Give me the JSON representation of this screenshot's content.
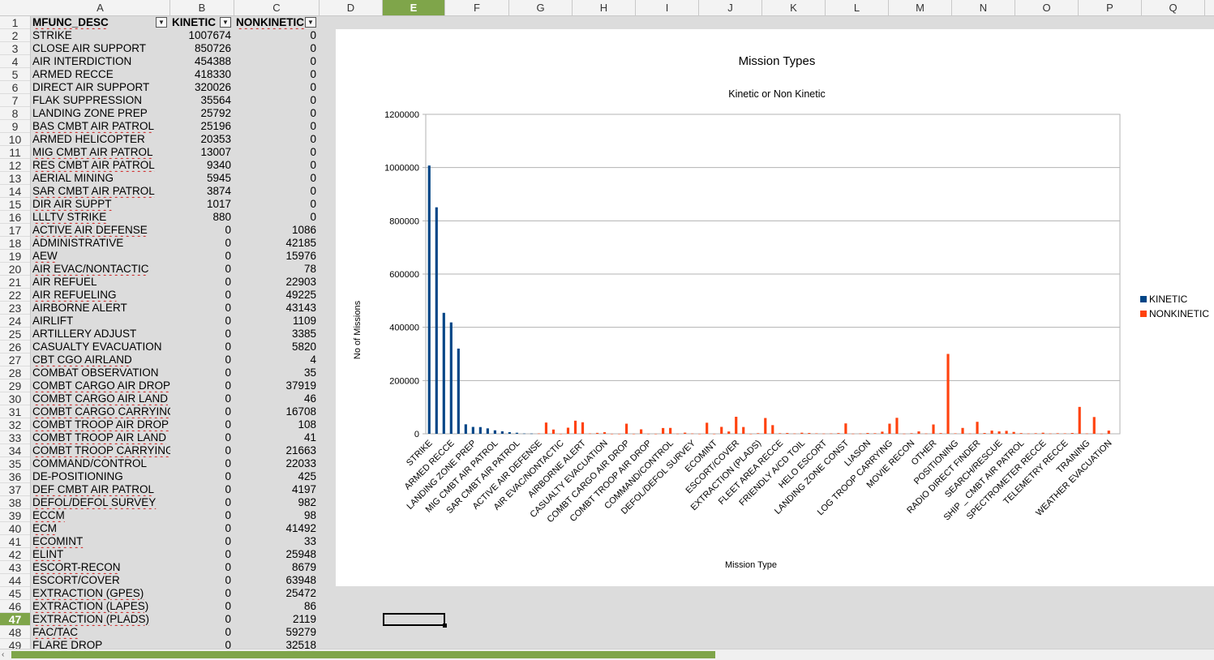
{
  "spreadsheet": {
    "columns": [
      "A",
      "B",
      "C",
      "D",
      "E",
      "F",
      "G",
      "H",
      "I",
      "J",
      "K",
      "L",
      "M",
      "N",
      "O",
      "P",
      "Q"
    ],
    "active_column": "E",
    "active_row": 47,
    "header_row": {
      "a": "MFUNC_DESC",
      "b": "KINETIC",
      "c": "NONKINETIC"
    },
    "rows": [
      {
        "r": 2,
        "a": "STRIKE",
        "b": "1007674",
        "c": "0"
      },
      {
        "r": 3,
        "a": "CLOSE AIR SUPPORT",
        "b": "850726",
        "c": "0"
      },
      {
        "r": 4,
        "a": "AIR INTERDICTION",
        "b": "454388",
        "c": "0"
      },
      {
        "r": 5,
        "a": "ARMED RECCE",
        "b": "418330",
        "c": "0"
      },
      {
        "r": 6,
        "a": "DIRECT AIR SUPPORT",
        "b": "320026",
        "c": "0"
      },
      {
        "r": 7,
        "a": "FLAK SUPPRESSION",
        "b": "35564",
        "c": "0"
      },
      {
        "r": 8,
        "a": "LANDING ZONE PREP",
        "b": "25792",
        "c": "0"
      },
      {
        "r": 9,
        "a": "BAS CMBT AIR  PATROL",
        "b": "25196",
        "c": "0"
      },
      {
        "r": 10,
        "a": "ARMED HELICOPTER",
        "b": "20353",
        "c": "0"
      },
      {
        "r": 11,
        "a": "MIG CMBT AIR PATROL",
        "b": "13007",
        "c": "0"
      },
      {
        "r": 12,
        "a": "RES CMBT AIR PATROL",
        "b": "9340",
        "c": "0"
      },
      {
        "r": 13,
        "a": "AERIAL MINING",
        "b": "5945",
        "c": "0"
      },
      {
        "r": 14,
        "a": "SAR CMBT AIR PATROL",
        "b": "3874",
        "c": "0"
      },
      {
        "r": 15,
        "a": "DIR AIR SUPPT",
        "b": "1017",
        "c": "0"
      },
      {
        "r": 16,
        "a": "LLLTV STRIKE",
        "b": "880",
        "c": "0"
      },
      {
        "r": 17,
        "a": "ACTIVE AIR DEFENSE",
        "b": "0",
        "c": "1086"
      },
      {
        "r": 18,
        "a": "ADMINISTRATIVE",
        "b": "0",
        "c": "42185"
      },
      {
        "r": 19,
        "a": "AEW",
        "b": "0",
        "c": "15976"
      },
      {
        "r": 20,
        "a": "AIR EVAC/NONTACTIC",
        "b": "0",
        "c": "78"
      },
      {
        "r": 21,
        "a": "AIR REFUEL",
        "b": "0",
        "c": "22903"
      },
      {
        "r": 22,
        "a": "AIR REFUELING",
        "b": "0",
        "c": "49225"
      },
      {
        "r": 23,
        "a": "AIRBORNE ALERT",
        "b": "0",
        "c": "43143"
      },
      {
        "r": 24,
        "a": "AIRLIFT",
        "b": "0",
        "c": "1109"
      },
      {
        "r": 25,
        "a": "ARTILLERY ADJUST",
        "b": "0",
        "c": "3385"
      },
      {
        "r": 26,
        "a": "CASUALTY EVACUATION",
        "b": "0",
        "c": "5820"
      },
      {
        "r": 27,
        "a": "CBT CGO AIRLAND",
        "b": "0",
        "c": "4"
      },
      {
        "r": 28,
        "a": "COMBAT OBSERVATION",
        "b": "0",
        "c": "35"
      },
      {
        "r": 29,
        "a": "COMBT CARGO AIR  DROP",
        "b": "0",
        "c": "37919"
      },
      {
        "r": 30,
        "a": "COMBT CARGO AIR LAND",
        "b": "0",
        "c": "46"
      },
      {
        "r": 31,
        "a": "COMBT CARGO CARRYING",
        "b": "0",
        "c": "16708"
      },
      {
        "r": 32,
        "a": "COMBT TROOP AIR DROP",
        "b": "0",
        "c": "108"
      },
      {
        "r": 33,
        "a": "COMBT TROOP AIR LAND",
        "b": "0",
        "c": "41"
      },
      {
        "r": 34,
        "a": "COMBT TROOP CARRYING",
        "b": "0",
        "c": "21663"
      },
      {
        "r": 35,
        "a": "COMMAND/CONTROL",
        "b": "0",
        "c": "22033"
      },
      {
        "r": 36,
        "a": "DE-POSITIONING",
        "b": "0",
        "c": "425"
      },
      {
        "r": 37,
        "a": "DEF CMBT AIR PATROL",
        "b": "0",
        "c": "4197"
      },
      {
        "r": 38,
        "a": "DEFOL/DEFOL SURVEY",
        "b": "0",
        "c": "982"
      },
      {
        "r": 39,
        "a": "ECCM",
        "b": "0",
        "c": "98"
      },
      {
        "r": 40,
        "a": "ECM",
        "b": "0",
        "c": "41492"
      },
      {
        "r": 41,
        "a": "ECOMINT",
        "b": "0",
        "c": "33"
      },
      {
        "r": 42,
        "a": "ELINT",
        "b": "0",
        "c": "25948"
      },
      {
        "r": 43,
        "a": "ESCORT-RECON",
        "b": "0",
        "c": "8679"
      },
      {
        "r": 44,
        "a": "ESCORT/COVER",
        "b": "0",
        "c": "63948"
      },
      {
        "r": 45,
        "a": "EXTRACTION (GPES)",
        "b": "0",
        "c": "25472"
      },
      {
        "r": 46,
        "a": "EXTRACTION (LAPES)",
        "b": "0",
        "c": "86"
      },
      {
        "r": 47,
        "a": "EXTRACTION (PLADS)",
        "b": "0",
        "c": "2119"
      },
      {
        "r": 48,
        "a": "FAC/TAC",
        "b": "0",
        "c": "59279"
      },
      {
        "r": 49,
        "a": "FLARE DROP",
        "b": "0",
        "c": "32518"
      }
    ]
  },
  "chart_data": {
    "type": "bar",
    "title": "Mission Types",
    "subtitle": "Kinetic or Non Kinetic",
    "xlabel": "Mission Type",
    "ylabel": "No of Missions",
    "ylim": [
      0,
      1200000
    ],
    "yticks": [
      "0",
      "200000",
      "400000",
      "600000",
      "800000",
      "1000000",
      "1200000"
    ],
    "grid": true,
    "legend_position": "right",
    "x_tick_labels": [
      "STRIKE",
      "ARMED RECCE",
      "LANDING ZONE PREP",
      "MIG CMBT AIR PATROL",
      "SAR CMBT AIR PATROL",
      "ACTIVE AIR DEFENSE",
      "AIR EVAC/NONTACTIC",
      "AIRBORNE ALERT",
      "CASUALTY EVACUATION",
      "COMBT CARGO AIR  DROP",
      "COMBT TROOP AIR DROP",
      "COMMAND/CONTROL",
      "DEFOL/DEFOL SURVEY",
      "ECOMINT",
      "ESCORT/COVER",
      "EXTRACTION (PLADS)",
      "FLEET AREA RECCE",
      "FRIENDLY A/CD TOIL",
      "HELO ESCORT",
      "LANDING ZONE CONST",
      "LIASON",
      "LOG TROOP CARRYING",
      "MOVIE RECON",
      "OTHER",
      "POSITIONING",
      "RADIO DIRECT FINDER",
      "SEARCH/RESCUE",
      "SHIP _ CMBT AIR PATROL",
      "SPECTROMETER RECCE",
      "TELEMETRY RECCE",
      "TRAINING",
      "WEATHER EVACUATION"
    ],
    "series": [
      {
        "name": "KINETIC",
        "color": "#004586",
        "values": [
          1007674,
          850726,
          454388,
          418330,
          320026,
          35564,
          25792,
          25196,
          20353,
          13007,
          9340,
          5945,
          3874,
          1017,
          880,
          0,
          0,
          0,
          0,
          0,
          0,
          0,
          0,
          0,
          0,
          0,
          0,
          0,
          0,
          0,
          0,
          0,
          0,
          0,
          0,
          0,
          0,
          0,
          0,
          0,
          0,
          0,
          0,
          0,
          0,
          0,
          0,
          0,
          0,
          0,
          0,
          0,
          0,
          0,
          0,
          0,
          0,
          0,
          0,
          0,
          0,
          0,
          0,
          0,
          0,
          0,
          0,
          0,
          0,
          0,
          0,
          0,
          0,
          0,
          0,
          0,
          0,
          0,
          0,
          0,
          0,
          0,
          0,
          0,
          0,
          0,
          0,
          0,
          0,
          0,
          0,
          0,
          0,
          0,
          0
        ]
      },
      {
        "name": "NONKINETIC",
        "color": "#ff420e",
        "values": [
          0,
          0,
          0,
          0,
          0,
          0,
          0,
          0,
          0,
          0,
          0,
          0,
          0,
          0,
          0,
          1086,
          42185,
          15976,
          78,
          22903,
          49225,
          43143,
          1109,
          3385,
          5820,
          4,
          35,
          37919,
          46,
          16708,
          108,
          41,
          21663,
          22033,
          425,
          4197,
          982,
          98,
          41492,
          33,
          25948,
          8679,
          63948,
          25472,
          86,
          2119,
          59279,
          32518,
          2000,
          3000,
          1000,
          4000,
          3000,
          1500,
          800,
          1200,
          2500,
          39000,
          500,
          1000,
          3000,
          2000,
          8000,
          38000,
          60000,
          500,
          2000,
          9000,
          1000,
          35000,
          2500,
          300000,
          1500,
          22000,
          1000,
          45000,
          3000,
          12000,
          9000,
          11000,
          7000,
          2500,
          1000,
          2000,
          4000,
          1000,
          2000,
          1500,
          3000,
          101000,
          1000,
          63000,
          500,
          12000
        ]
      }
    ]
  }
}
